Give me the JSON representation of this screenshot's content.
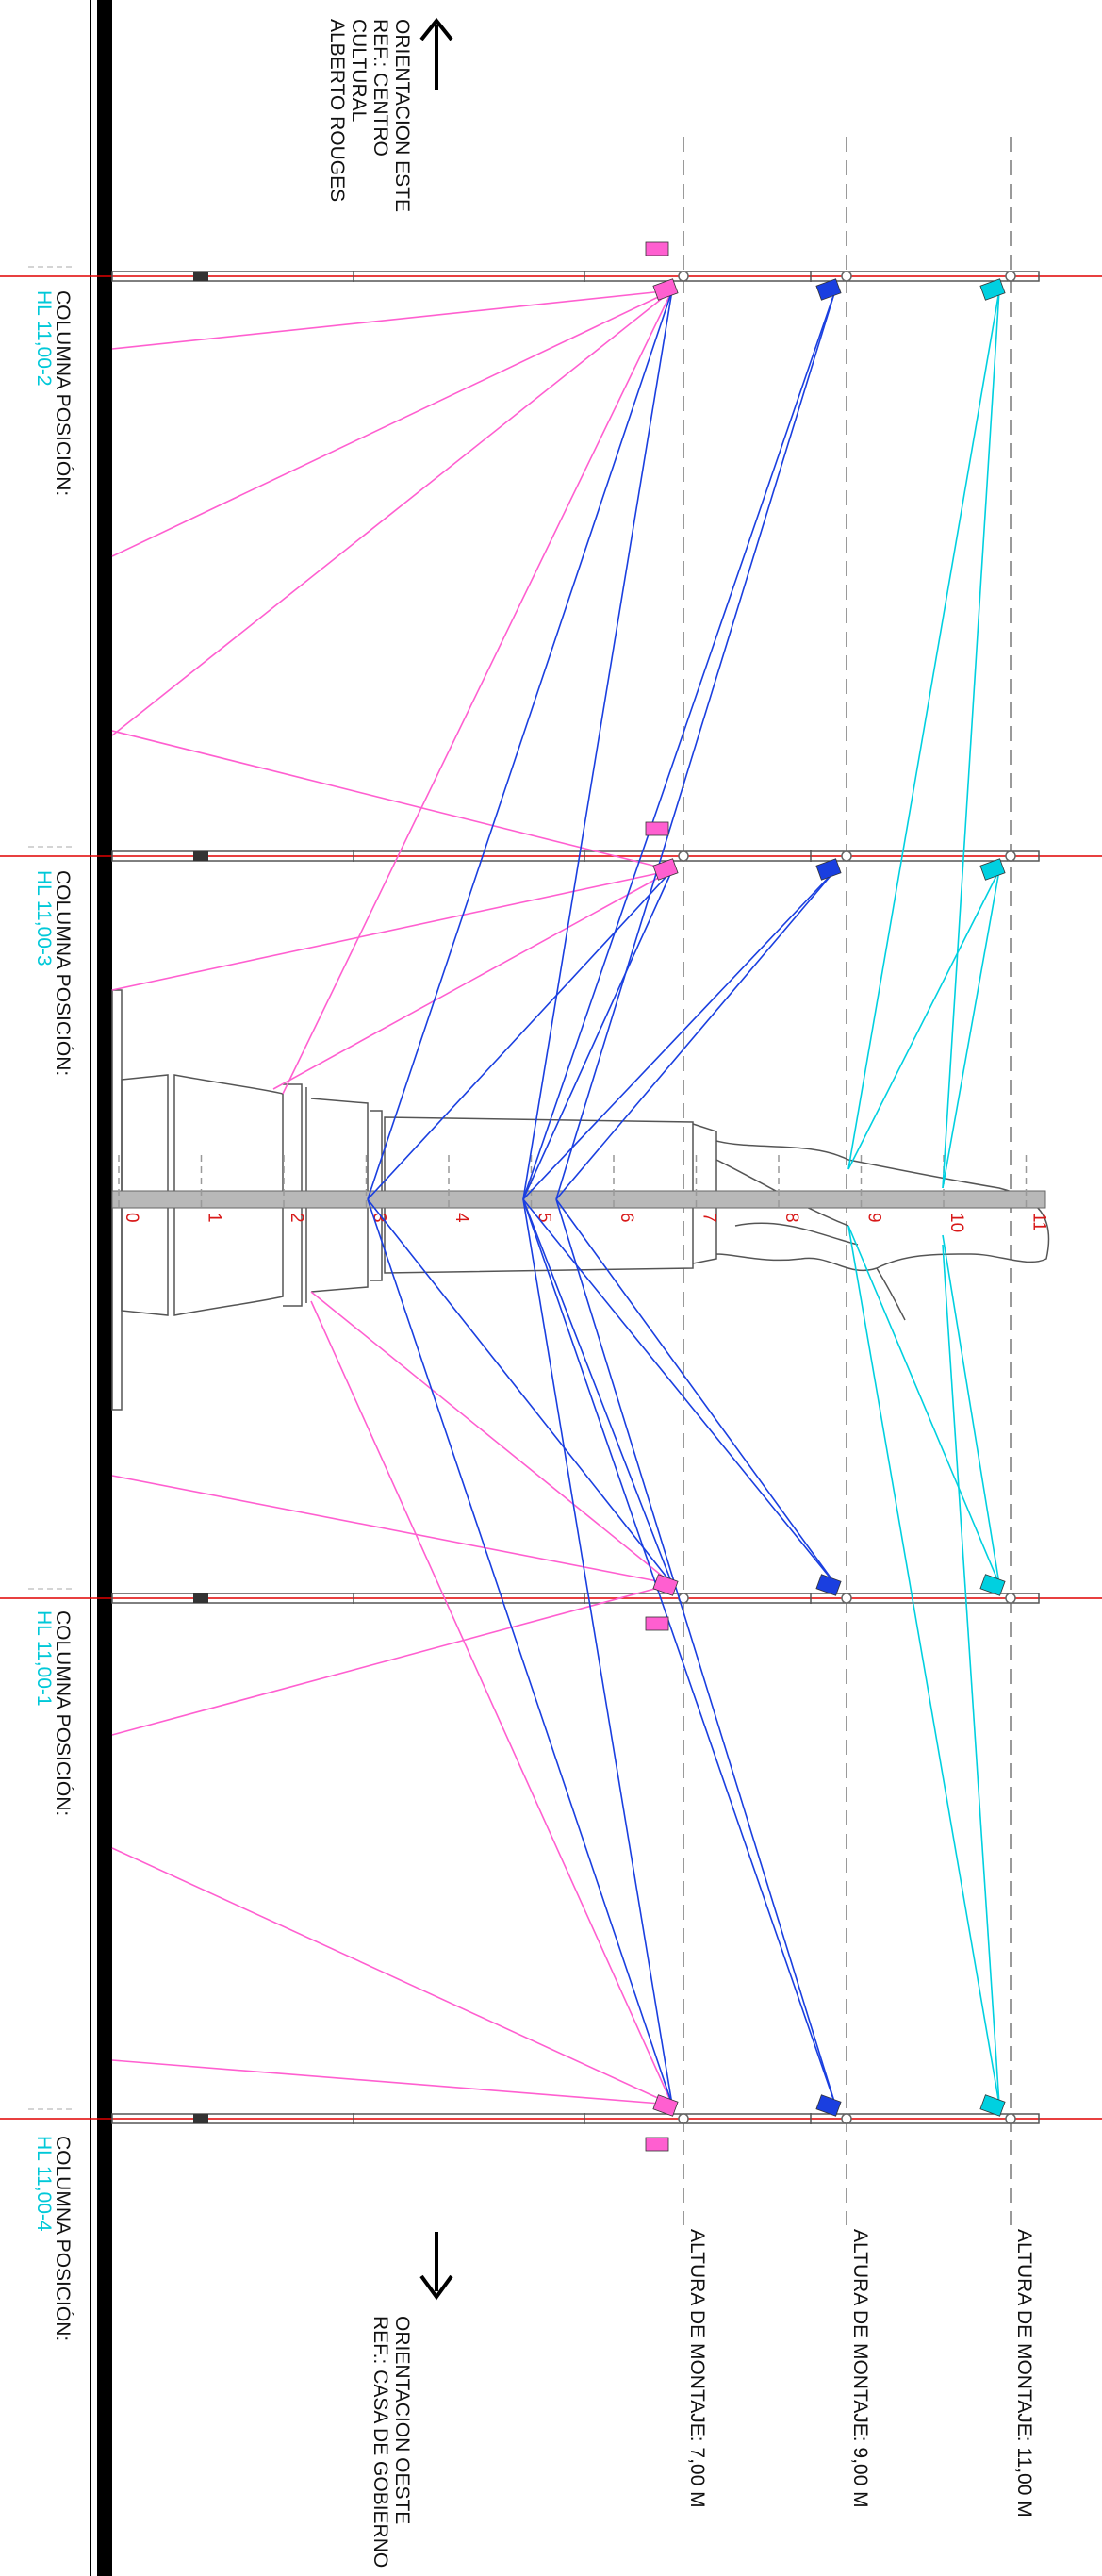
{
  "orientation_east": {
    "line1": "ORIENTACION ESTE",
    "line2": "REF.: CENTRO",
    "line3": "CULTURAL",
    "line4": "ALBERTO ROUGES"
  },
  "orientation_west": {
    "line1": "ORIENTACION OESTE",
    "line2": "REF.: CASA DE GOBIERNO"
  },
  "columns": [
    {
      "label": "COLUMNA POSICIÓN:",
      "code": "HL 11,00-2"
    },
    {
      "label": "COLUMNA POSICIÓN:",
      "code": "HL 11,00-3"
    },
    {
      "label": "COLUMNA POSICIÓN:",
      "code": "HL 11,00-1"
    },
    {
      "label": "COLUMNA POSICIÓN:",
      "code": "HL 11,00-4"
    }
  ],
  "mounting_heights": [
    "ALTURA DE MONTAJE: 7,00 M",
    "ALTURA DE MONTAJE: 9,00 M",
    "ALTURA DE MONTAJE: 11,00 M"
  ],
  "scale_ticks": [
    "0",
    "1",
    "2",
    "3",
    "4",
    "5",
    "6",
    "7",
    "8",
    "9",
    "10",
    "11"
  ],
  "colors": {
    "pink": "#ff5fd0",
    "blue": "#1a3fe0",
    "cyan": "#00d0e0",
    "red": "#e00000",
    "ground": "#000000"
  }
}
